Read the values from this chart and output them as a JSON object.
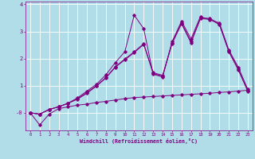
{
  "xlabel": "Windchill (Refroidissement éolien,°C)",
  "bg_color": "#b0dde8",
  "grid_color": "#a0c8d8",
  "line_color": "#800080",
  "xlim": [
    -0.5,
    23.5
  ],
  "ylim": [
    -0.65,
    4.1
  ],
  "xticks": [
    0,
    1,
    2,
    3,
    4,
    5,
    6,
    7,
    8,
    9,
    10,
    11,
    12,
    13,
    14,
    15,
    16,
    17,
    18,
    19,
    20,
    21,
    22,
    23
  ],
  "yticks": [
    0,
    1,
    2,
    3,
    4
  ],
  "ytick_labels": [
    "-0",
    "1",
    "2",
    "3",
    "4"
  ],
  "series": [
    {
      "x": [
        0,
        1,
        2,
        3,
        4,
        5,
        6,
        7,
        8,
        9,
        10,
        11,
        12,
        13,
        14,
        15,
        16,
        17,
        18,
        19,
        20,
        21,
        22,
        23
      ],
      "y": [
        0.0,
        -0.45,
        -0.05,
        0.15,
        0.22,
        0.28,
        0.32,
        0.38,
        0.42,
        0.47,
        0.52,
        0.56,
        0.58,
        0.6,
        0.62,
        0.64,
        0.66,
        0.68,
        0.7,
        0.72,
        0.75,
        0.77,
        0.8,
        0.83
      ]
    },
    {
      "x": [
        0,
        1,
        2,
        3,
        4,
        5,
        6,
        7,
        8,
        9,
        10,
        11,
        12,
        13,
        14,
        15,
        16,
        17,
        18,
        19,
        20,
        21,
        22,
        23
      ],
      "y": [
        0.0,
        -0.05,
        0.12,
        0.22,
        0.35,
        0.55,
        0.8,
        1.05,
        1.4,
        1.85,
        2.25,
        3.6,
        3.1,
        1.42,
        1.32,
        2.62,
        3.38,
        2.72,
        3.55,
        3.42,
        3.32,
        2.32,
        1.68,
        0.87
      ]
    },
    {
      "x": [
        0,
        1,
        2,
        3,
        4,
        5,
        6,
        7,
        8,
        9,
        10,
        11,
        12,
        13,
        14,
        15,
        16,
        17,
        18,
        19,
        20,
        21,
        22,
        23
      ],
      "y": [
        0.0,
        -0.05,
        0.12,
        0.22,
        0.35,
        0.52,
        0.75,
        1.0,
        1.3,
        1.7,
        1.98,
        2.25,
        2.55,
        1.48,
        1.38,
        2.58,
        3.32,
        2.62,
        3.5,
        3.48,
        3.28,
        2.28,
        1.62,
        0.82
      ]
    },
    {
      "x": [
        0,
        1,
        2,
        3,
        4,
        5,
        6,
        7,
        8,
        9,
        10,
        11,
        12,
        13,
        14,
        15,
        16,
        17,
        18,
        19,
        20,
        21,
        22,
        23
      ],
      "y": [
        0.0,
        -0.05,
        0.12,
        0.22,
        0.35,
        0.5,
        0.72,
        0.98,
        1.28,
        1.68,
        1.95,
        2.22,
        2.52,
        1.45,
        1.35,
        2.55,
        3.28,
        2.58,
        3.47,
        3.45,
        3.25,
        2.25,
        1.58,
        0.8
      ]
    }
  ]
}
